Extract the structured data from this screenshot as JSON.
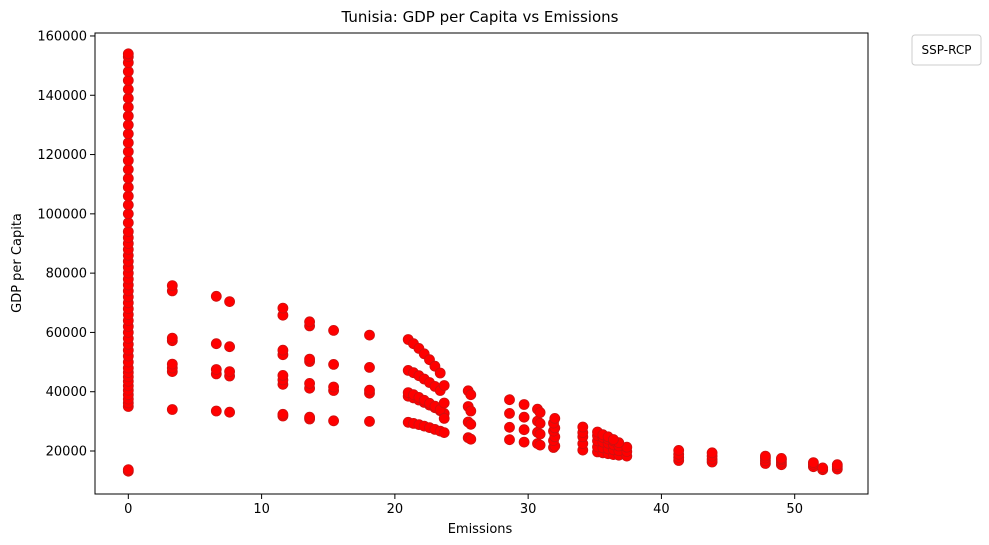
{
  "chart_data": {
    "type": "scatter",
    "title": "Tunisia: GDP per Capita vs Emissions",
    "xlabel": "Emissions",
    "ylabel": "GDP per Capita",
    "xlim": [
      -2.5,
      55.5
    ],
    "ylim": [
      5500,
      161000
    ],
    "xticks": [
      0,
      10,
      20,
      30,
      40,
      50
    ],
    "yticks": [
      20000,
      40000,
      60000,
      80000,
      100000,
      120000,
      140000,
      160000
    ],
    "grid": false,
    "legend": {
      "title": "SSP-RCP",
      "placement": "outside-top-right",
      "entries": []
    },
    "point_color": "#ff0000",
    "point_edge_color": "#cc1111",
    "series": [
      {
        "points": [
          [
            0,
            13200
          ],
          [
            0,
            13700
          ],
          [
            0,
            35000
          ],
          [
            0,
            36200
          ],
          [
            0,
            37500
          ],
          [
            0,
            39000
          ],
          [
            0,
            40500
          ],
          [
            0,
            42000
          ],
          [
            0,
            43500
          ],
          [
            0,
            45000
          ],
          [
            0,
            46500
          ],
          [
            0,
            48000
          ],
          [
            0,
            50000
          ],
          [
            0,
            52000
          ],
          [
            0,
            54000
          ],
          [
            0,
            56000
          ],
          [
            0,
            58000
          ],
          [
            0,
            60000
          ],
          [
            0,
            62000
          ],
          [
            0,
            64000
          ],
          [
            0,
            66000
          ],
          [
            0,
            68000
          ],
          [
            0,
            70000
          ],
          [
            0,
            72000
          ],
          [
            0,
            74000
          ],
          [
            0,
            76000
          ],
          [
            0,
            78000
          ],
          [
            0,
            80000
          ],
          [
            0,
            82000
          ],
          [
            0,
            84000
          ],
          [
            0,
            86000
          ],
          [
            0,
            88000
          ],
          [
            0,
            90000
          ],
          [
            0,
            92000
          ],
          [
            0,
            94000
          ],
          [
            0,
            97000
          ],
          [
            0,
            100000
          ],
          [
            0,
            103000
          ],
          [
            0,
            106000
          ],
          [
            0,
            109000
          ],
          [
            0,
            112000
          ],
          [
            0,
            115000
          ],
          [
            0,
            118000
          ],
          [
            0,
            121000
          ],
          [
            0,
            124000
          ],
          [
            0,
            127000
          ],
          [
            0,
            130000
          ],
          [
            0,
            133000
          ],
          [
            0,
            136000
          ],
          [
            0,
            139000
          ],
          [
            0,
            142000
          ],
          [
            0,
            145000
          ],
          [
            0,
            148000
          ],
          [
            0,
            151000
          ],
          [
            0,
            153000
          ],
          [
            0,
            154000
          ],
          [
            3.3,
            34000
          ],
          [
            3.3,
            46800
          ],
          [
            3.3,
            48000
          ],
          [
            3.3,
            49300
          ],
          [
            3.3,
            57200
          ],
          [
            3.3,
            58100
          ],
          [
            3.3,
            74000
          ],
          [
            3.3,
            75800
          ],
          [
            6.6,
            33500
          ],
          [
            6.6,
            46000
          ],
          [
            6.6,
            47500
          ],
          [
            6.6,
            56200
          ],
          [
            6.6,
            72200
          ],
          [
            7.6,
            33100
          ],
          [
            7.6,
            45300
          ],
          [
            7.6,
            46800
          ],
          [
            7.6,
            55200
          ],
          [
            7.6,
            70400
          ],
          [
            11.6,
            31800
          ],
          [
            11.6,
            32400
          ],
          [
            11.6,
            42500
          ],
          [
            11.6,
            44000
          ],
          [
            11.6,
            45500
          ],
          [
            11.6,
            52500
          ],
          [
            11.6,
            54000
          ],
          [
            11.6,
            65800
          ],
          [
            11.6,
            68200
          ],
          [
            13.6,
            30800
          ],
          [
            13.6,
            31400
          ],
          [
            13.6,
            41200
          ],
          [
            13.6,
            42800
          ],
          [
            13.6,
            50200
          ],
          [
            13.6,
            51000
          ],
          [
            13.6,
            62200
          ],
          [
            13.6,
            63600
          ],
          [
            15.4,
            30200
          ],
          [
            15.4,
            40400
          ],
          [
            15.4,
            41600
          ],
          [
            15.4,
            49200
          ],
          [
            15.4,
            60700
          ],
          [
            18.1,
            30000
          ],
          [
            18.1,
            39500
          ],
          [
            18.1,
            40500
          ],
          [
            18.1,
            48200
          ],
          [
            18.1,
            59100
          ],
          [
            21.0,
            29700
          ],
          [
            21.4,
            29300
          ],
          [
            21.8,
            28900
          ],
          [
            22.2,
            28400
          ],
          [
            22.6,
            27900
          ],
          [
            23.0,
            27300
          ],
          [
            23.4,
            26700
          ],
          [
            23.7,
            26200
          ],
          [
            21.0,
            38500
          ],
          [
            21.4,
            37900
          ],
          [
            21.8,
            37200
          ],
          [
            22.2,
            36400
          ],
          [
            22.6,
            35500
          ],
          [
            23.0,
            34600
          ],
          [
            23.4,
            33600
          ],
          [
            23.7,
            32700
          ],
          [
            21.0,
            39700
          ],
          [
            21.4,
            39000
          ],
          [
            21.8,
            38100
          ],
          [
            22.2,
            37100
          ],
          [
            22.6,
            36100
          ],
          [
            23.0,
            35100
          ],
          [
            23.4,
            34000
          ],
          [
            23.7,
            31000
          ],
          [
            21.0,
            47200
          ],
          [
            21.4,
            46400
          ],
          [
            21.8,
            45400
          ],
          [
            22.2,
            44300
          ],
          [
            22.6,
            43100
          ],
          [
            23.0,
            41800
          ],
          [
            23.4,
            40400
          ],
          [
            23.7,
            36200
          ],
          [
            21.0,
            57600
          ],
          [
            21.4,
            56200
          ],
          [
            21.8,
            54600
          ],
          [
            22.2,
            52800
          ],
          [
            22.6,
            50800
          ],
          [
            23.0,
            48600
          ],
          [
            23.4,
            46300
          ],
          [
            23.7,
            42100
          ],
          [
            25.5,
            24500
          ],
          [
            25.7,
            24000
          ],
          [
            25.5,
            29800
          ],
          [
            25.7,
            29000
          ],
          [
            25.5,
            35000
          ],
          [
            25.7,
            33500
          ],
          [
            25.5,
            40300
          ],
          [
            25.7,
            39000
          ],
          [
            28.6,
            23800
          ],
          [
            28.6,
            28000
          ],
          [
            28.6,
            32700
          ],
          [
            28.6,
            37300
          ],
          [
            29.7,
            23000
          ],
          [
            29.7,
            27200
          ],
          [
            29.7,
            31400
          ],
          [
            29.7,
            35700
          ],
          [
            30.7,
            22500
          ],
          [
            30.9,
            22000
          ],
          [
            30.7,
            26300
          ],
          [
            30.9,
            25700
          ],
          [
            30.7,
            30100
          ],
          [
            30.9,
            29300
          ],
          [
            30.7,
            34100
          ],
          [
            30.9,
            33000
          ],
          [
            31.9,
            21200
          ],
          [
            32.0,
            21700
          ],
          [
            31.9,
            23500
          ],
          [
            32.0,
            24800
          ],
          [
            31.9,
            26700
          ],
          [
            32.0,
            27800
          ],
          [
            31.9,
            29400
          ],
          [
            32.0,
            31000
          ],
          [
            34.1,
            20300
          ],
          [
            34.1,
            22500
          ],
          [
            34.1,
            24800
          ],
          [
            34.1,
            26200
          ],
          [
            34.1,
            28100
          ],
          [
            35.2,
            19700
          ],
          [
            35.6,
            19400
          ],
          [
            36.0,
            19100
          ],
          [
            36.4,
            18800
          ],
          [
            36.8,
            18600
          ],
          [
            37.4,
            18300
          ],
          [
            35.2,
            21400
          ],
          [
            35.6,
            21100
          ],
          [
            36.0,
            20700
          ],
          [
            36.4,
            20400
          ],
          [
            36.8,
            20100
          ],
          [
            37.4,
            19800
          ],
          [
            35.2,
            23400
          ],
          [
            35.6,
            23000
          ],
          [
            36.0,
            22600
          ],
          [
            36.4,
            22100
          ],
          [
            36.8,
            21700
          ],
          [
            37.4,
            21300
          ],
          [
            35.2,
            25200
          ],
          [
            35.6,
            24600
          ],
          [
            36.0,
            24000
          ],
          [
            36.4,
            23400
          ],
          [
            36.8,
            22800
          ],
          [
            35.2,
            26400
          ],
          [
            35.6,
            25500
          ],
          [
            36.0,
            24800
          ],
          [
            36.4,
            23900
          ],
          [
            41.3,
            16800
          ],
          [
            41.3,
            17800
          ],
          [
            41.3,
            18900
          ],
          [
            41.3,
            20200
          ],
          [
            43.8,
            16300
          ],
          [
            43.8,
            17200
          ],
          [
            43.8,
            18300
          ],
          [
            43.8,
            19400
          ],
          [
            47.8,
            15800
          ],
          [
            47.8,
            16700
          ],
          [
            47.8,
            17600
          ],
          [
            47.8,
            18300
          ],
          [
            49.0,
            15400
          ],
          [
            49.0,
            16200
          ],
          [
            49.0,
            17000
          ],
          [
            49.0,
            17500
          ],
          [
            51.4,
            14700
          ],
          [
            51.4,
            15500
          ],
          [
            51.4,
            16100
          ],
          [
            52.1,
            13700
          ],
          [
            52.1,
            14300
          ],
          [
            53.2,
            13900
          ],
          [
            53.2,
            14700
          ],
          [
            53.2,
            15400
          ]
        ]
      }
    ]
  }
}
